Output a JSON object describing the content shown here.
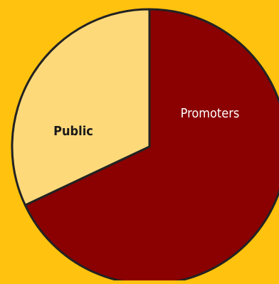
{
  "chart_data": {
    "type": "pie",
    "title": "",
    "slices": [
      {
        "label": "Promoters",
        "value": 68,
        "color": "#8b0000"
      },
      {
        "label": "Public",
        "value": 32,
        "color": "#fdd97a"
      }
    ],
    "legend": "none",
    "stroke_color": "#222222",
    "background_color": "#ffc20e"
  }
}
